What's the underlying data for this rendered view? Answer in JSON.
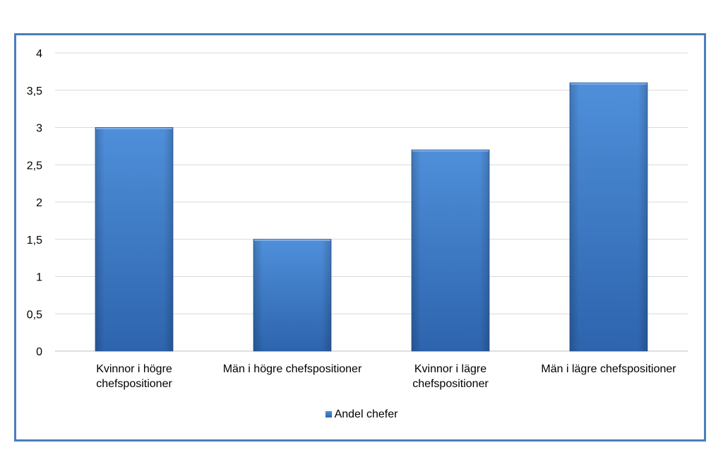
{
  "chart_data": {
    "type": "bar",
    "categories": [
      "Kvinnor i högre chefspositioner",
      "Män i högre chefspositioner",
      "Kvinnor i lägre chefspositioner",
      "Män i lägre chefspositioner"
    ],
    "category_label_lines": [
      [
        "Kvinnor i högre",
        "chefspositioner"
      ],
      [
        "Män i högre chefspositioner"
      ],
      [
        "Kvinnor i lägre",
        "chefspositioner"
      ],
      [
        "Män i lägre chefspositioner"
      ]
    ],
    "series": [
      {
        "name": "Andel chefer",
        "values": [
          3.0,
          1.5,
          2.7,
          3.6
        ]
      }
    ],
    "ylim": [
      0,
      4
    ],
    "yticks": [
      0,
      0.5,
      1,
      1.5,
      2,
      2.5,
      3,
      3.5,
      4
    ],
    "ytick_labels": [
      "0",
      "0,5",
      "1",
      "1,5",
      "2",
      "2,5",
      "3",
      "3,5",
      "4"
    ],
    "grid": true,
    "legend_position": "bottom",
    "colors": {
      "bar_top": "#4f8fda",
      "bar_bottom": "#2d64ad",
      "bar_edge": "#2a5a9a",
      "frame": "#4a7ebb",
      "grid": "#d9d9d9"
    }
  }
}
